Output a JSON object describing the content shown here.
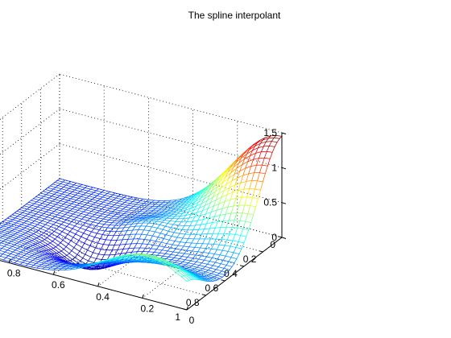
{
  "chart_data": {
    "type": "surface",
    "title": "The spline interpolant",
    "xlabel": "",
    "ylabel": "",
    "zlabel": "",
    "x_ticks": [
      "0",
      "0.2",
      "0.4",
      "0.6",
      "0.8",
      "1"
    ],
    "y_ticks": [
      "0",
      "0.2",
      "0.4",
      "0.6",
      "0.8",
      "1"
    ],
    "z_ticks": [
      "0",
      "0.5",
      "1",
      "1.5"
    ],
    "xlim": [
      0,
      1
    ],
    "ylim": [
      0,
      1
    ],
    "zlim": [
      0,
      1.5
    ],
    "grid": true,
    "colormap": "jet",
    "mesh_resolution": 41,
    "surface_features": [
      {
        "kind": "peak",
        "x": 0.0,
        "y": 0.0,
        "z": 1.45
      },
      {
        "kind": "trough",
        "x": 0.6,
        "y": 0.6,
        "z": -0.3
      },
      {
        "kind": "ridge",
        "x": 1.0,
        "y": 0.2,
        "z": 0.6
      },
      {
        "kind": "bump",
        "x": 0.35,
        "y": 0.45,
        "z": 0.15
      }
    ],
    "colors": {
      "low": "#00008f",
      "mid": "#00ffff",
      "high": "#800000"
    }
  }
}
